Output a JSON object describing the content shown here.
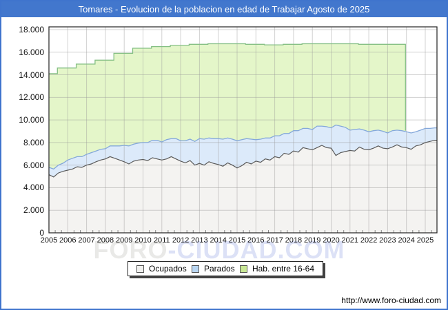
{
  "window": {
    "title": "Tomares - Evolucion de la poblacion en edad de Trabajar Agosto de 2025"
  },
  "chart": {
    "url": "http://www.foro-ciudad.com",
    "watermark": {
      "part1": "FORO",
      "part2": "-CIUDAD.COM"
    },
    "y_axis": {
      "labels": [
        "18.000",
        "16.000",
        "14.000",
        "12.000",
        "10.000",
        "8.000",
        "6.000",
        "4.000",
        "2.000",
        "0"
      ]
    },
    "x_axis": {
      "years": [
        "2005",
        "2006",
        "2007",
        "2008",
        "2009",
        "2010",
        "2011",
        "2012",
        "2013",
        "2014",
        "2015",
        "2016",
        "2017",
        "2018",
        "2019",
        "2020",
        "2021",
        "2022",
        "2023",
        "2024",
        "2025"
      ]
    },
    "legend": [
      {
        "label": "Ocupados",
        "swatch": "#efefed"
      },
      {
        "label": "Parados",
        "swatch": "#b9d6f2"
      },
      {
        "label": "Hab. entre 16-64",
        "swatch": "#c8e795"
      }
    ]
  },
  "colors": {
    "titlebar": "#4277cd",
    "frame": "#3f74cd",
    "grid": "#9a9a9a",
    "plot_border": "#222222",
    "ocupados_fill": "#f4f3f1",
    "ocupados_line": "#5a5a5a",
    "parados_fill": "#dceafa",
    "parados_line": "#84a8da",
    "hab_fill": "#e4f6c9",
    "hab_line": "#84bf84"
  },
  "chart_data": {
    "type": "area",
    "stacked": true,
    "title": "Tomares - Evolucion de la poblacion en edad de Trabajar Agosto de 2025",
    "x_unit": "year (monthly series, quarterly estimates)",
    "x_start": 2005.0,
    "x_step": 0.25,
    "x_end": 2025.62,
    "ylim": [
      0,
      18000
    ],
    "y_tick_step": 2000,
    "legend_position": "bottom-center",
    "grid": true,
    "series": [
      {
        "name": "Ocupados",
        "values": [
          5150,
          4950,
          5300,
          5450,
          5550,
          5650,
          5850,
          5800,
          6000,
          6100,
          6300,
          6450,
          6550,
          6750,
          6600,
          6450,
          6300,
          6100,
          6350,
          6450,
          6500,
          6400,
          6650,
          6550,
          6450,
          6550,
          6750,
          6550,
          6350,
          6200,
          6400,
          6000,
          6150,
          6000,
          6300,
          6150,
          6050,
          5900,
          6200,
          6000,
          5750,
          5950,
          6250,
          6100,
          6350,
          6250,
          6550,
          6450,
          6750,
          6650,
          7050,
          6950,
          7250,
          7150,
          7550,
          7450,
          7350,
          7550,
          7750,
          7550,
          7500,
          6850,
          7100,
          7200,
          7300,
          7250,
          7600,
          7400,
          7350,
          7500,
          7700,
          7500,
          7450,
          7600,
          7800,
          7600,
          7550,
          7400,
          7700,
          7800,
          8000,
          8100,
          8200
        ]
      },
      {
        "name": "Parados (stacked on Ocupados)",
        "values": [
          650,
          700,
          700,
          720,
          900,
          950,
          900,
          950,
          950,
          1000,
          950,
          950,
          900,
          950,
          1100,
          1250,
          1450,
          1600,
          1500,
          1500,
          1500,
          1600,
          1550,
          1650,
          1600,
          1700,
          1600,
          1800,
          1800,
          1950,
          1900,
          2100,
          2200,
          2300,
          2100,
          2200,
          2300,
          2400,
          2200,
          2300,
          2400,
          2300,
          2100,
          2200,
          1900,
          2050,
          1850,
          1950,
          1850,
          1950,
          1750,
          1850,
          1800,
          1900,
          1700,
          1800,
          1800,
          1900,
          1700,
          1850,
          1800,
          2700,
          2350,
          2150,
          1800,
          1900,
          1600,
          1700,
          1600,
          1550,
          1400,
          1500,
          1400,
          1450,
          1300,
          1450,
          1400,
          1450,
          1250,
          1300,
          1250,
          1150,
          1100
        ]
      }
    ],
    "hab_16_64": {
      "name": "Hab. entre 16-64",
      "type": "step",
      "start": 2005.0,
      "first_step": 2005.45,
      "step_interval": 1,
      "end": 2023.95,
      "levels": [
        14100,
        14600,
        14950,
        15300,
        15900,
        16350,
        16500,
        16600,
        16700,
        16750,
        16750,
        16700,
        16650,
        16700,
        16750,
        16750,
        16750,
        16700,
        16700,
        16700
      ]
    }
  }
}
